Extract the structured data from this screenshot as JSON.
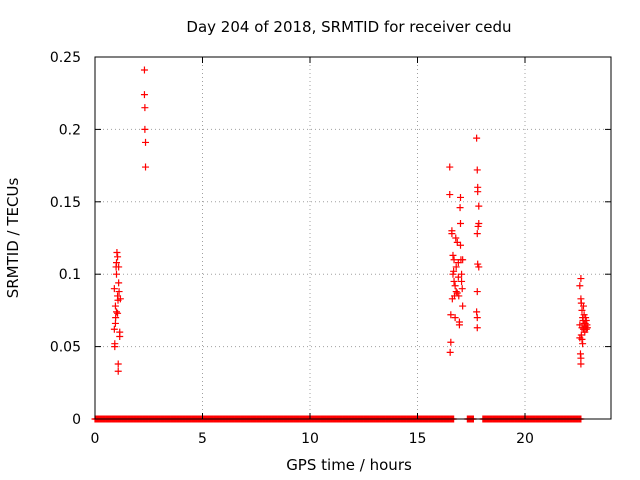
{
  "chart_data": {
    "type": "scatter",
    "title": "Day 204 of 2018, SRMTID for receiver cedu",
    "xlabel": "GPS time / hours",
    "ylabel": "SRMTID / TECUs",
    "xlim": [
      0,
      24
    ],
    "ylim": [
      0,
      0.25
    ],
    "x_ticks": [
      0,
      5,
      10,
      15,
      20
    ],
    "x_tick_labels": [
      "0",
      "5",
      "10",
      "15",
      "20"
    ],
    "y_ticks": [
      0,
      0.05,
      0.1,
      0.15,
      0.2,
      0.25
    ],
    "y_tick_labels": [
      "0",
      "0.05",
      "0.1",
      "0.15",
      "0.2",
      "0.25"
    ],
    "grid": true,
    "marker": "plus",
    "marker_color": "#ff0000",
    "grid_color": "#a0a0a0",
    "zero_baseline": {
      "from": 0.0,
      "to": 22.6,
      "value": 0,
      "gaps": [
        [
          16.7,
          17.3
        ],
        [
          17.6,
          18.0
        ]
      ]
    },
    "points": [
      [
        0.9,
        0.09
      ],
      [
        0.9,
        0.062
      ],
      [
        0.95,
        0.078
      ],
      [
        0.95,
        0.066
      ],
      [
        0.98,
        0.105
      ],
      [
        1.0,
        0.108
      ],
      [
        1.0,
        0.1
      ],
      [
        1.0,
        0.074
      ],
      [
        1.02,
        0.115
      ],
      [
        1.05,
        0.112
      ],
      [
        1.05,
        0.085
      ],
      [
        1.05,
        0.073
      ],
      [
        1.07,
        0.082
      ],
      [
        1.08,
        0.038
      ],
      [
        1.08,
        0.033
      ],
      [
        1.1,
        0.105
      ],
      [
        1.1,
        0.094
      ],
      [
        1.12,
        0.088
      ],
      [
        1.15,
        0.06
      ],
      [
        1.15,
        0.057
      ],
      [
        1.18,
        0.083
      ],
      [
        0.92,
        0.052
      ],
      [
        0.92,
        0.05
      ],
      [
        0.96,
        0.07
      ],
      [
        2.3,
        0.241
      ],
      [
        2.3,
        0.224
      ],
      [
        2.32,
        0.215
      ],
      [
        2.32,
        0.2
      ],
      [
        2.35,
        0.191
      ],
      [
        2.35,
        0.174
      ],
      [
        16.5,
        0.174
      ],
      [
        16.5,
        0.155
      ],
      [
        16.6,
        0.13
      ],
      [
        16.6,
        0.128
      ],
      [
        16.65,
        0.113
      ],
      [
        16.65,
        0.1
      ],
      [
        16.7,
        0.11
      ],
      [
        16.7,
        0.095
      ],
      [
        16.72,
        0.085
      ],
      [
        16.75,
        0.092
      ],
      [
        16.75,
        0.07
      ],
      [
        16.55,
        0.072
      ],
      [
        16.55,
        0.053
      ],
      [
        16.52,
        0.046
      ],
      [
        16.8,
        0.105
      ],
      [
        16.8,
        0.088
      ],
      [
        16.85,
        0.087
      ],
      [
        16.85,
        0.122
      ],
      [
        16.9,
        0.108
      ],
      [
        16.9,
        0.098
      ],
      [
        16.92,
        0.085
      ],
      [
        16.95,
        0.065
      ],
      [
        16.95,
        0.067
      ],
      [
        16.98,
        0.146
      ],
      [
        17.0,
        0.153
      ],
      [
        17.0,
        0.135
      ],
      [
        17.0,
        0.12
      ],
      [
        17.02,
        0.11
      ],
      [
        17.05,
        0.1
      ],
      [
        17.05,
        0.095
      ],
      [
        17.08,
        0.09
      ],
      [
        17.1,
        0.11
      ],
      [
        17.1,
        0.078
      ],
      [
        16.62,
        0.083
      ],
      [
        16.68,
        0.102
      ],
      [
        16.78,
        0.125
      ],
      [
        17.75,
        0.194
      ],
      [
        17.78,
        0.172
      ],
      [
        17.8,
        0.16
      ],
      [
        17.8,
        0.157
      ],
      [
        17.85,
        0.147
      ],
      [
        17.82,
        0.133
      ],
      [
        17.78,
        0.128
      ],
      [
        17.85,
        0.105
      ],
      [
        17.8,
        0.107
      ],
      [
        17.78,
        0.088
      ],
      [
        17.75,
        0.074
      ],
      [
        17.78,
        0.07
      ],
      [
        17.78,
        0.063
      ],
      [
        17.85,
        0.135
      ],
      [
        22.55,
        0.092
      ],
      [
        22.6,
        0.097
      ],
      [
        22.6,
        0.083
      ],
      [
        22.62,
        0.08
      ],
      [
        22.65,
        0.075
      ],
      [
        22.55,
        0.065
      ],
      [
        22.55,
        0.056
      ],
      [
        22.58,
        0.045
      ],
      [
        22.6,
        0.042
      ],
      [
        22.6,
        0.038
      ],
      [
        22.65,
        0.063
      ],
      [
        22.68,
        0.07
      ],
      [
        22.7,
        0.068
      ],
      [
        22.72,
        0.062
      ],
      [
        22.75,
        0.072
      ],
      [
        22.75,
        0.066
      ],
      [
        22.78,
        0.06
      ],
      [
        22.8,
        0.064
      ],
      [
        22.8,
        0.066
      ],
      [
        22.85,
        0.062
      ],
      [
        22.85,
        0.068
      ],
      [
        22.88,
        0.065
      ],
      [
        22.9,
        0.063
      ],
      [
        22.62,
        0.058
      ],
      [
        22.68,
        0.052
      ],
      [
        22.72,
        0.078
      ],
      [
        22.82,
        0.07
      ],
      [
        22.65,
        0.055
      ]
    ]
  }
}
